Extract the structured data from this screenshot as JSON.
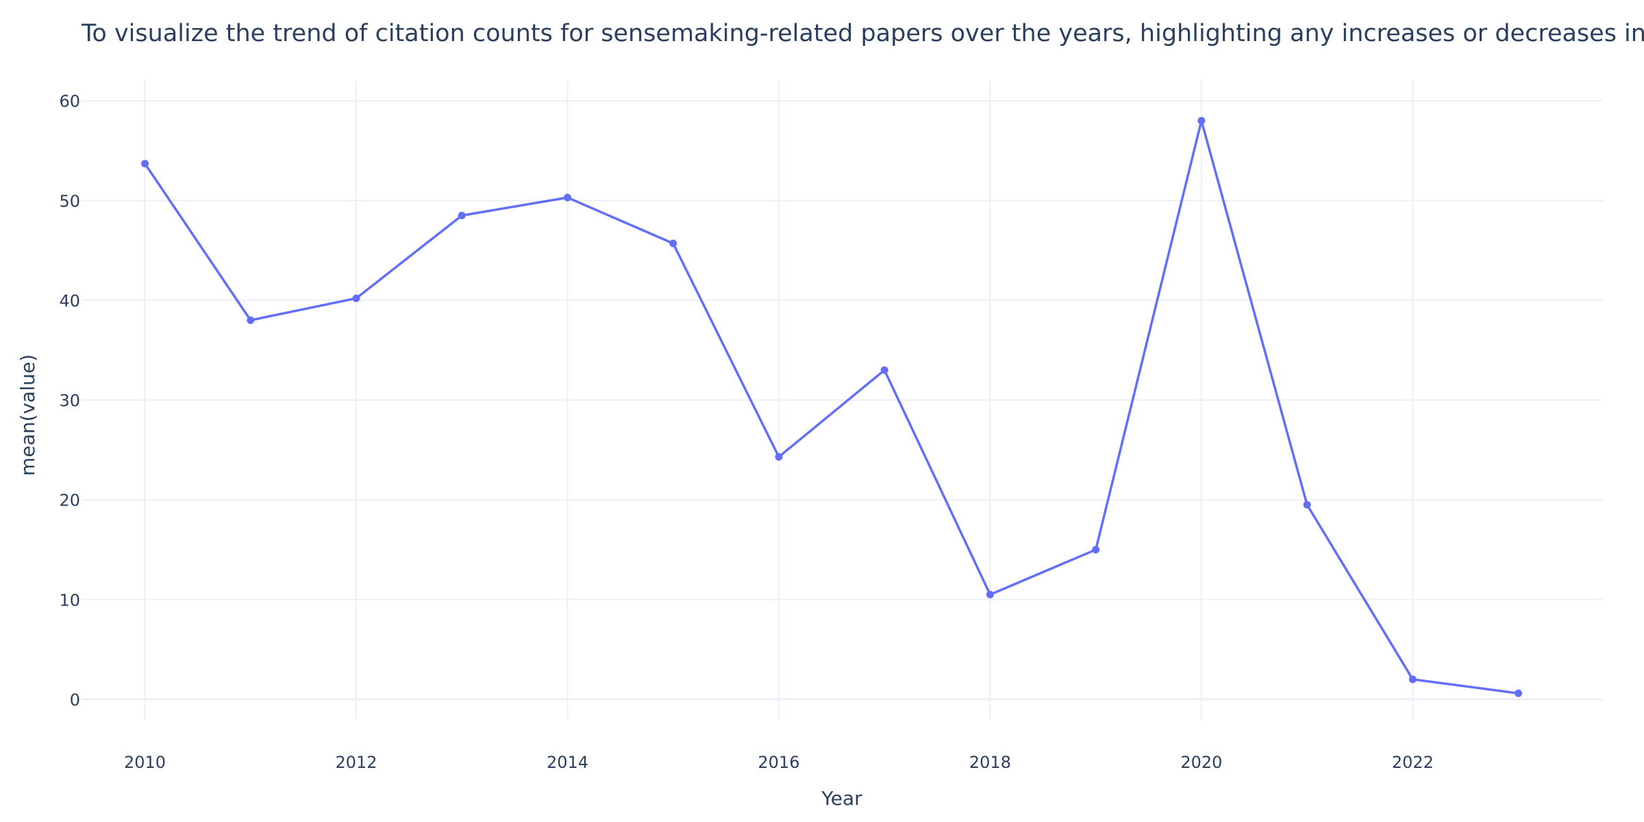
{
  "chart_data": {
    "type": "line",
    "title": "To visualize the trend of citation counts for sensemaking-related papers over the years, highlighting any increases or decreases in citation counts.",
    "xlabel": "Year",
    "ylabel": "mean(value)",
    "x": [
      2010,
      2011,
      2012,
      2013,
      2014,
      2015,
      2016,
      2017,
      2018,
      2019,
      2020,
      2021,
      2022,
      2023
    ],
    "series": [
      {
        "values": [
          53.7,
          38.0,
          40.2,
          48.5,
          50.3,
          45.7,
          24.3,
          33.0,
          10.5,
          15.0,
          58.0,
          19.5,
          2.0,
          0.6
        ]
      }
    ],
    "xlim": [
      2009.4,
      2023.8
    ],
    "ylim": [
      -2,
      62
    ],
    "xticks": [
      "2010",
      "2012",
      "2014",
      "2016",
      "2018",
      "2020",
      "2022"
    ],
    "yticks": [
      "0",
      "10",
      "20",
      "30",
      "40",
      "50",
      "60"
    ],
    "grid": true,
    "line_color": "#636efa"
  }
}
